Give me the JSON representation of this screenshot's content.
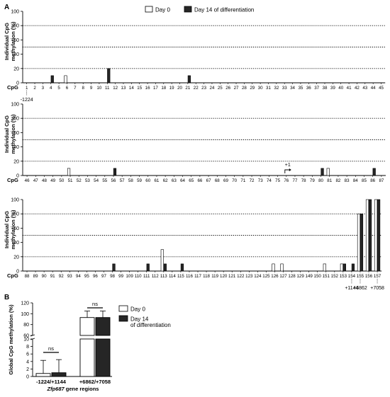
{
  "figure": {
    "panel_labels": [
      "A",
      "B"
    ],
    "legend_a": {
      "open": "Day 0",
      "filled": "Day 14 of differentiation"
    },
    "legend_b": {
      "open": "Day 0",
      "filled_line1": "Day 14",
      "filled_line2": "of differentiation"
    }
  },
  "colors": {
    "filled": "#262626",
    "open": "#ffffff",
    "stroke": "#000000",
    "grid": "#000000"
  },
  "chart_data": [
    {
      "type": "bar",
      "panel": "A-1",
      "ylabel_line1": "Individual CpG",
      "ylabel_line2": "methylation (%)",
      "xlabel": "CpG",
      "ylim": [
        0,
        100
      ],
      "yticks": [
        0,
        20,
        40,
        60,
        80,
        100
      ],
      "dotted_gridlines": [
        20,
        50,
        80
      ],
      "categories": [
        "1",
        "2",
        "3",
        "4",
        "5",
        "6",
        "7",
        "8",
        "9",
        "10",
        "11",
        "12",
        "13",
        "14",
        "15",
        "16",
        "17",
        "18",
        "19",
        "20",
        "21",
        "22",
        "23",
        "24",
        "25",
        "26",
        "27",
        "28",
        "29",
        "30",
        "31",
        "32",
        "33",
        "34",
        "35",
        "36",
        "37",
        "38",
        "39",
        "40",
        "41",
        "42",
        "43",
        "44",
        "45"
      ],
      "series": [
        {
          "name": "Day 0",
          "style": "open",
          "values": [
            0,
            0,
            0,
            0,
            0,
            10,
            0,
            0,
            0,
            0,
            0,
            0,
            0,
            0,
            0,
            0,
            0,
            0,
            0,
            0,
            0,
            0,
            0,
            0,
            0,
            0,
            0,
            0,
            0,
            0,
            0,
            0,
            0,
            0,
            0,
            0,
            0,
            0,
            0,
            0,
            0,
            0,
            0,
            0,
            0
          ]
        },
        {
          "name": "Day 14 of differentiation",
          "style": "filled",
          "values": [
            0,
            0,
            0,
            10,
            0,
            0,
            0,
            0,
            0,
            0,
            20,
            0,
            0,
            0,
            0,
            0,
            0,
            0,
            0,
            0,
            10,
            0,
            0,
            0,
            0,
            0,
            0,
            0,
            0,
            0,
            0,
            0,
            0,
            0,
            0,
            0,
            0,
            0,
            0,
            0,
            0,
            0,
            0,
            0,
            0
          ]
        }
      ],
      "annotations": [
        {
          "category_index": 0,
          "text": "-1224"
        }
      ]
    },
    {
      "type": "bar",
      "panel": "A-2",
      "ylabel_line1": "Individual CpG",
      "ylabel_line2": "methylation (%)",
      "xlabel": "CpG",
      "ylim": [
        0,
        100
      ],
      "yticks": [
        0,
        20,
        40,
        60,
        80,
        100
      ],
      "dotted_gridlines": [
        20,
        50,
        80
      ],
      "categories": [
        "46",
        "47",
        "48",
        "49",
        "50",
        "51",
        "52",
        "53",
        "54",
        "55",
        "56",
        "57",
        "58",
        "59",
        "60",
        "61",
        "62",
        "63",
        "64",
        "65",
        "66",
        "67",
        "68",
        "69",
        "70",
        "71",
        "72",
        "73",
        "74",
        "75",
        "76",
        "77",
        "78",
        "79",
        "80",
        "81",
        "82",
        "83",
        "84",
        "85",
        "86",
        "87"
      ],
      "series": [
        {
          "name": "Day 0",
          "style": "open",
          "values": [
            0,
            0,
            0,
            0,
            0,
            10,
            0,
            0,
            0,
            0,
            0,
            0,
            0,
            0,
            0,
            0,
            0,
            0,
            0,
            0,
            0,
            0,
            0,
            0,
            0,
            0,
            0,
            0,
            0,
            0,
            0,
            0,
            0,
            0,
            0,
            10,
            0,
            0,
            0,
            0,
            0,
            0
          ]
        },
        {
          "name": "Day 14 of differentiation",
          "style": "filled",
          "values": [
            0,
            0,
            0,
            0,
            0,
            0,
            0,
            0,
            0,
            0,
            10,
            0,
            0,
            0,
            0,
            0,
            0,
            0,
            0,
            0,
            0,
            0,
            0,
            0,
            0,
            0,
            0,
            0,
            0,
            0,
            0,
            0,
            0,
            0,
            10,
            0,
            0,
            0,
            0,
            0,
            10,
            0
          ]
        }
      ],
      "annotations": [
        {
          "category_index": 30,
          "text": "+1"
        }
      ]
    },
    {
      "type": "bar",
      "panel": "A-3",
      "ylabel_line1": "Individual CpG",
      "ylabel_line2": "methylation (%)",
      "xlabel": "CpG",
      "ylim": [
        0,
        100
      ],
      "yticks": [
        0,
        20,
        40,
        60,
        80,
        100
      ],
      "dotted_gridlines": [
        20,
        50,
        80
      ],
      "categories": [
        "88",
        "89",
        "90",
        "91",
        "92",
        "93",
        "94",
        "95",
        "96",
        "97",
        "98",
        "99",
        "109",
        "110",
        "111",
        "112",
        "113",
        "114",
        "115",
        "116",
        "117",
        "118",
        "119",
        "120",
        "121",
        "122",
        "123",
        "124",
        "125",
        "126",
        "127",
        "128",
        "129",
        "149",
        "150",
        "151",
        "152",
        "153",
        "154",
        "155",
        "156",
        "157"
      ],
      "series": [
        {
          "name": "Day 0",
          "style": "open",
          "values": [
            0,
            0,
            0,
            0,
            0,
            0,
            0,
            0,
            0,
            0,
            0,
            0,
            0,
            0,
            0,
            0,
            30,
            0,
            0,
            0,
            0,
            0,
            0,
            0,
            0,
            0,
            0,
            0,
            0,
            10,
            10,
            0,
            0,
            0,
            0,
            10,
            0,
            10,
            0,
            80,
            100,
            100
          ]
        },
        {
          "name": "Day 14 of differentiation",
          "style": "filled",
          "values": [
            0,
            0,
            0,
            0,
            0,
            0,
            0,
            0,
            0,
            0,
            10,
            0,
            0,
            0,
            10,
            0,
            10,
            0,
            10,
            0,
            0,
            0,
            0,
            0,
            0,
            0,
            0,
            0,
            0,
            0,
            0,
            0,
            0,
            0,
            0,
            0,
            0,
            10,
            10,
            80,
            100,
            100
          ]
        }
      ],
      "annotations": [
        {
          "category_index": 38,
          "text": "+1144"
        },
        {
          "category_index": 39,
          "text": "+6862"
        },
        {
          "category_index": 41,
          "text": "+7058"
        }
      ]
    },
    {
      "type": "bar",
      "panel": "B",
      "ylabel": "Global CpG methylation (%)",
      "xlabel": "Zfp687 gene regions",
      "ylim": [
        0,
        120
      ],
      "axis_break": [
        10,
        60
      ],
      "yticks_lower": [
        0,
        2,
        4,
        6,
        8,
        10
      ],
      "yticks_upper": [
        60,
        80,
        100,
        120
      ],
      "categories": [
        "-1224/+1144",
        "+6862/+7058"
      ],
      "series": [
        {
          "name": "Day 0",
          "style": "open",
          "values": [
            0.8,
            93
          ],
          "error": [
            3.5,
            12
          ]
        },
        {
          "name": "Day 14 of differentiation",
          "style": "filled",
          "values": [
            1.0,
            93
          ],
          "error": [
            3.5,
            12
          ]
        }
      ],
      "significance": [
        "ns",
        "ns"
      ]
    }
  ]
}
